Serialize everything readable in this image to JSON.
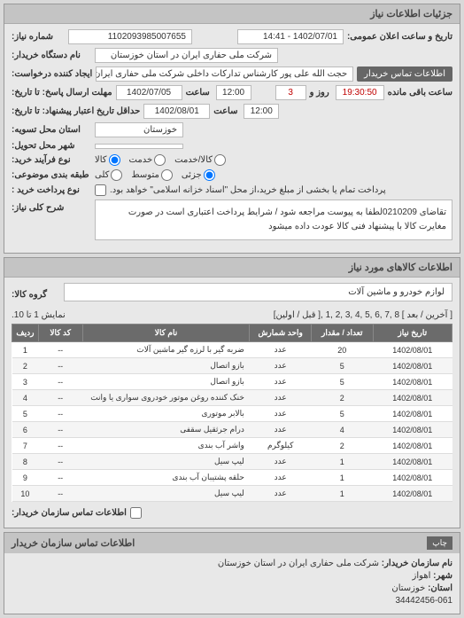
{
  "panels": {
    "needInfo": {
      "title": "جزئیات اطلاعات نیاز",
      "fields": {
        "requestNo": {
          "label": "شماره نیاز:",
          "value": "1102093985007655"
        },
        "publicAnnounce": {
          "label": "تاریخ و ساعت اعلان عمومی:",
          "value": "1402/07/01 - 14:41"
        },
        "buyerName": {
          "label": "نام دستگاه خریدار:",
          "value": "شرکت ملی حفاری ایران در استان خوزستان"
        },
        "requester": {
          "label": "ایجاد کننده درخواست:",
          "value": "حجت الله علی پور کارشناس تدارکات داخلی شرکت ملی حفاری ایران در استان"
        },
        "contactBtn": "اطلاعات تماس خریدار",
        "responseDeadline": {
          "label": "مهلت ارسال پاسخ: تا تاریخ:",
          "date": "1402/07/05",
          "timeLabel": "ساعت",
          "time": "12:00"
        },
        "remaining": {
          "daysLabel": "روز و",
          "days": "3",
          "hoursLabel": "ساعت باقی مانده",
          "hours": "19:30:50"
        },
        "creditDeadline": {
          "label": "حداقل تاریخ اعتبار پیشنهاد: تا تاریخ:",
          "date": "1402/08/01",
          "timeLabel": "ساعت",
          "time": "12:00"
        },
        "province": {
          "label": "استان محل تسویه:",
          "value": "خوزستان"
        },
        "city": {
          "label": "شهر محل تحویل:",
          "value": ""
        },
        "procurement": {
          "label": "نوع فرآیند خرید:",
          "opts": [
            "کالا",
            "خدمت",
            "کالا/خدمت"
          ],
          "selected": 0
        },
        "packaging": {
          "label": "طبقه بندی موضوعی:",
          "opts": [
            "کلی",
            "متوسط",
            "جزئی"
          ],
          "selected": 2
        },
        "payment": {
          "label": "نوع پرداخت خرید :",
          "check": "پرداخت تمام یا بخشی از مبلغ خرید،از محل \"اسناد خزانه اسلامی\" خواهد بود."
        },
        "overallDesc": {
          "label": "شرح کلی نیاز:",
          "value": "تقاضای 0210209لطفا به پیوست مراجعه شود / شرایط پرداخت اعتباری است در صورت مغایرت کالا با پیشنهاد فنی کالا عودت داده میشود"
        }
      }
    },
    "goodsInfo": {
      "title": "اطلاعات کالاهای مورد نیاز",
      "groupLabel": "گروه کالا:",
      "groupValue": "لوازم خودرو و ماشین آلات",
      "pager": {
        "summary": "نمایش 1 تا 10.",
        "nav": "[ آخرین / بعد ] 8 ,7 ,6 ,5 ,4 ,3 ,2 ,1 ,[ قبل / اولین]"
      },
      "columns": [
        "ردیف",
        "کد کالا",
        "نام کالا",
        "واحد شمارش",
        "تعداد / مقدار",
        "تاریخ نیاز"
      ],
      "rows": [
        {
          "idx": "1",
          "code": "--",
          "name": "ضربه گیر با لرزه گیر ماشین آلات",
          "unit": "عدد",
          "qty": "20",
          "date": "1402/08/01"
        },
        {
          "idx": "2",
          "code": "--",
          "name": "بازو اتصال",
          "unit": "عدد",
          "qty": "5",
          "date": "1402/08/01"
        },
        {
          "idx": "3",
          "code": "--",
          "name": "بازو اتصال",
          "unit": "عدد",
          "qty": "5",
          "date": "1402/08/01"
        },
        {
          "idx": "4",
          "code": "--",
          "name": "خنک کننده روغن موتور خودروی سواری یا وانت",
          "unit": "عدد",
          "qty": "2",
          "date": "1402/08/01"
        },
        {
          "idx": "5",
          "code": "--",
          "name": "بالابر موتوری",
          "unit": "عدد",
          "qty": "5",
          "date": "1402/08/01"
        },
        {
          "idx": "6",
          "code": "--",
          "name": "درام جرثقیل سقفی",
          "unit": "عدد",
          "qty": "4",
          "date": "1402/08/01"
        },
        {
          "idx": "7",
          "code": "--",
          "name": "واشر آب بندی",
          "unit": "کیلوگرم",
          "qty": "2",
          "date": "1402/08/01"
        },
        {
          "idx": "8",
          "code": "--",
          "name": "لیپ سیل",
          "unit": "عدد",
          "qty": "1",
          "date": "1402/08/01"
        },
        {
          "idx": "9",
          "code": "--",
          "name": "حلقه پشتیبان آب بندی",
          "unit": "عدد",
          "qty": "1",
          "date": "1402/08/01"
        },
        {
          "idx": "10",
          "code": "--",
          "name": "لیپ سیل",
          "unit": "عدد",
          "qty": "1",
          "date": "1402/08/01"
        }
      ],
      "contactLabel": "اطلاعات تماس سازمان خریدار:"
    },
    "buyer": {
      "title": "اطلاعات تماس سازمان خریدار",
      "printBtn": "چاپ",
      "lines": {
        "orgName": {
          "label": "نام سازمان خریدار:",
          "value": "شرکت ملی حفاری ایران در استان خوزستان"
        },
        "city": {
          "label": "شهر:",
          "value": "اهواز"
        },
        "province": {
          "label": "استان:",
          "value": "خوزستان"
        },
        "phone": {
          "label": "",
          "value": "34442456-061"
        }
      }
    }
  }
}
